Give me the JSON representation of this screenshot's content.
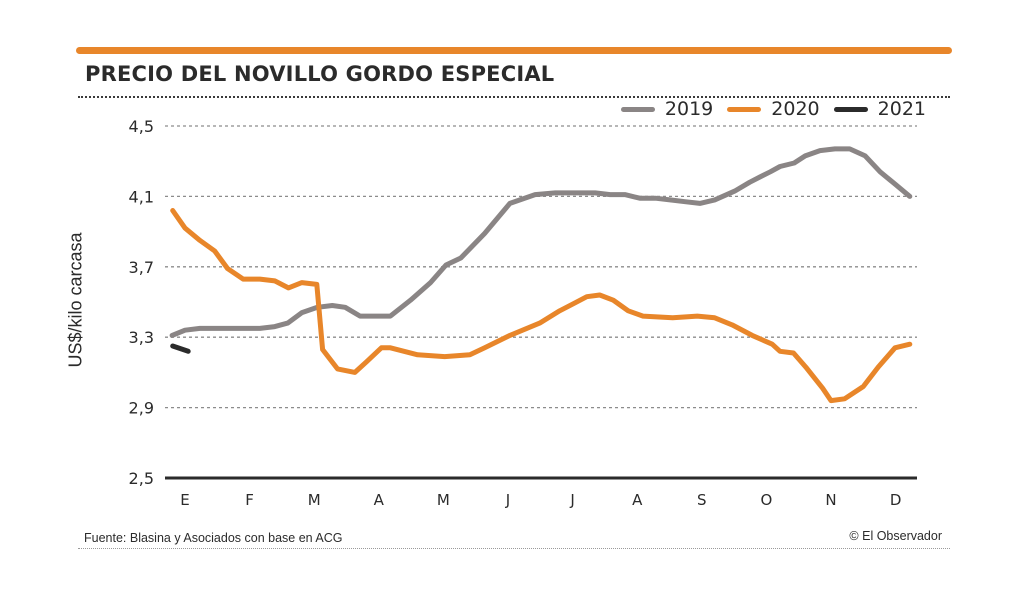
{
  "header": {
    "title": "PRECIO DEL NOVILLO GORDO ESPECIAL",
    "accent_color": "#e8862a"
  },
  "footer": {
    "source": "Fuente: Blasina y Asociados con base en ACG",
    "credit": "© El Observador"
  },
  "chart_data": {
    "type": "line",
    "title": "PRECIO DEL NOVILLO GORDO ESPECIAL",
    "xlabel": "",
    "ylabel": "US$/kilo carcasa",
    "ylim": [
      2.5,
      4.5
    ],
    "yticks": [
      2.5,
      2.9,
      3.3,
      3.7,
      4.1,
      4.5
    ],
    "ytick_labels": [
      "2,5",
      "2,9",
      "3,3",
      "3,7",
      "4,1",
      "4,5"
    ],
    "categories": [
      "E",
      "F",
      "M",
      "A",
      "M",
      "J",
      "J",
      "A",
      "S",
      "O",
      "N",
      "D"
    ],
    "grid": "horizontal-dotted",
    "legend_position": "top-right",
    "x_unit_note": "x values are fractional month index (0 = E, 11 = D)",
    "series": [
      {
        "name": "2019",
        "color": "#8a8585",
        "x": [
          -0.2,
          0.0,
          0.23,
          0.7,
          1.16,
          1.39,
          1.59,
          1.81,
          2.05,
          2.28,
          2.48,
          2.71,
          2.94,
          3.18,
          3.49,
          3.8,
          4.04,
          4.27,
          4.64,
          5.03,
          5.42,
          5.73,
          6.12,
          6.35,
          6.58,
          6.81,
          7.04,
          7.28,
          7.51,
          7.74,
          7.97,
          8.2,
          8.51,
          8.74,
          8.9,
          9.06,
          9.21,
          9.43,
          9.6,
          9.83,
          10.06,
          10.29,
          10.53,
          10.76,
          10.99,
          11.22
        ],
        "values": [
          3.31,
          3.34,
          3.35,
          3.35,
          3.35,
          3.36,
          3.38,
          3.44,
          3.47,
          3.48,
          3.47,
          3.42,
          3.42,
          3.42,
          3.51,
          3.61,
          3.71,
          3.75,
          3.89,
          4.06,
          4.11,
          4.12,
          4.12,
          4.12,
          4.11,
          4.11,
          4.09,
          4.09,
          4.08,
          4.07,
          4.06,
          4.08,
          4.13,
          4.18,
          4.21,
          4.24,
          4.27,
          4.29,
          4.33,
          4.36,
          4.37,
          4.37,
          4.33,
          4.24,
          4.17,
          4.1
        ]
      },
      {
        "name": "2020",
        "color": "#e8862a",
        "x": [
          -0.19,
          0.0,
          0.23,
          0.46,
          0.66,
          0.9,
          1.16,
          1.39,
          1.6,
          1.81,
          2.04,
          2.13,
          2.36,
          2.63,
          2.81,
          3.04,
          3.18,
          3.6,
          4.02,
          4.41,
          4.64,
          5.03,
          5.49,
          5.8,
          6.01,
          6.22,
          6.42,
          6.63,
          6.86,
          7.09,
          7.55,
          7.93,
          8.2,
          8.47,
          8.78,
          9.09,
          9.21,
          9.42,
          9.61,
          9.87,
          10.0,
          10.21,
          10.5,
          10.73,
          10.99,
          11.22
        ],
        "values": [
          4.02,
          3.92,
          3.85,
          3.79,
          3.69,
          3.63,
          3.63,
          3.62,
          3.58,
          3.61,
          3.6,
          3.23,
          3.12,
          3.1,
          3.16,
          3.24,
          3.24,
          3.2,
          3.19,
          3.2,
          3.24,
          3.31,
          3.38,
          3.45,
          3.49,
          3.53,
          3.54,
          3.51,
          3.45,
          3.42,
          3.41,
          3.42,
          3.41,
          3.37,
          3.31,
          3.26,
          3.22,
          3.21,
          3.13,
          3.01,
          2.94,
          2.95,
          3.02,
          3.13,
          3.24,
          3.26
        ]
      },
      {
        "name": "2021",
        "color": "#2b2b2b",
        "x": [
          -0.19,
          0.05
        ],
        "values": [
          3.25,
          3.22
        ]
      }
    ]
  }
}
